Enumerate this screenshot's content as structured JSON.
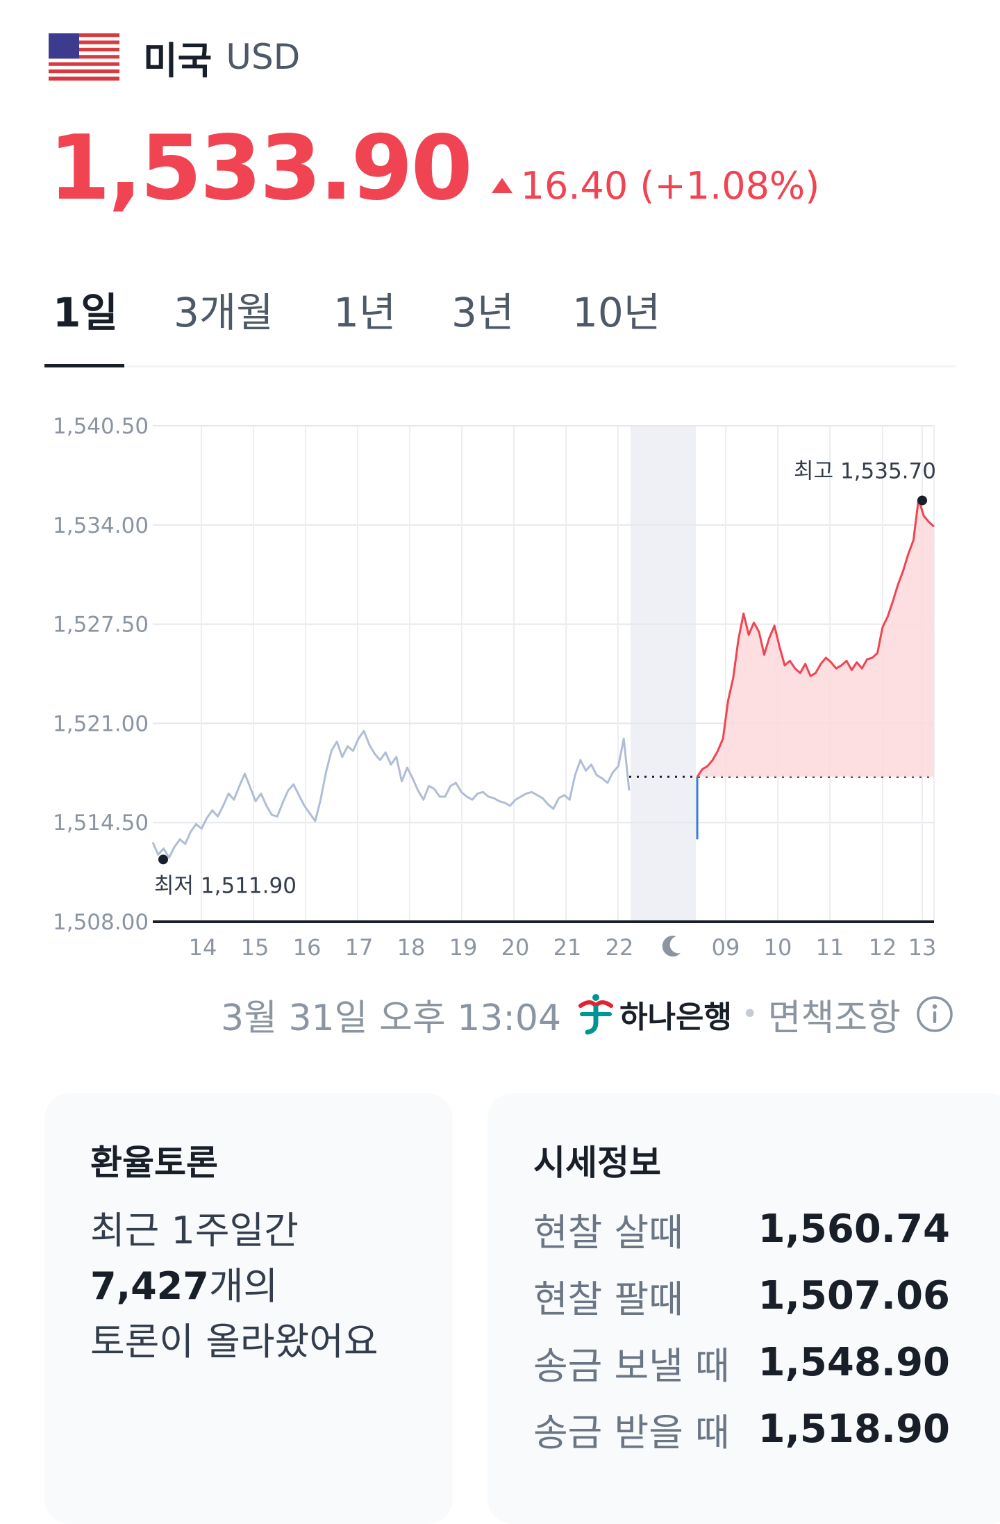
{
  "header": {
    "country": "미국",
    "currency_code": "USD",
    "flag_icon": "us-flag-icon",
    "price": "1,533.90",
    "change": "16.40 (+1.08%)",
    "change_direction": "up",
    "up_color": "#f04452"
  },
  "tabs": [
    {
      "label": "1일",
      "active": true
    },
    {
      "label": "3개월",
      "active": false
    },
    {
      "label": "1년",
      "active": false
    },
    {
      "label": "3년",
      "active": false
    },
    {
      "label": "10년",
      "active": false
    }
  ],
  "chart_data": {
    "type": "line",
    "ylim": [
      1508.0,
      1540.5
    ],
    "yticks": [
      "1,540.50",
      "1,534.00",
      "1,527.50",
      "1,521.00",
      "1,514.50",
      "1,508.00"
    ],
    "ytick_values": [
      1540.5,
      1534.0,
      1527.5,
      1521.0,
      1514.5,
      1508.0
    ],
    "xticks_previous": [
      "14",
      "15",
      "16",
      "17",
      "18",
      "19",
      "20",
      "21",
      "22"
    ],
    "xticks_today": [
      "09",
      "10",
      "11",
      "12",
      "13"
    ],
    "overnight_icon": "moon-icon",
    "previous_close": 1517.5,
    "grid": true,
    "previous_session": {
      "name": "previous session",
      "color": "#b0bdd6",
      "x_range": [
        "13:00",
        "22:10"
      ],
      "values": [
        1513.2,
        1512.4,
        1512.8,
        1512.2,
        1512.9,
        1513.4,
        1513.1,
        1513.9,
        1514.4,
        1514.1,
        1514.8,
        1515.3,
        1514.9,
        1515.6,
        1516.4,
        1516.0,
        1516.9,
        1517.7,
        1516.8,
        1515.9,
        1516.4,
        1515.6,
        1515.0,
        1514.9,
        1515.8,
        1516.6,
        1517.0,
        1516.3,
        1515.6,
        1515.1,
        1514.6,
        1516.0,
        1517.8,
        1519.2,
        1519.8,
        1518.8,
        1519.5,
        1519.2,
        1520.0,
        1520.5,
        1519.6,
        1519.0,
        1518.6,
        1519.1,
        1518.3,
        1518.8,
        1517.2,
        1518.1,
        1517.4,
        1516.6,
        1516.0,
        1516.9,
        1516.7,
        1516.2,
        1516.2,
        1516.9,
        1517.1,
        1516.5,
        1516.2,
        1516.0,
        1516.4,
        1516.5,
        1516.2,
        1516.1,
        1515.9,
        1515.8,
        1515.6,
        1516.0,
        1516.2,
        1516.4,
        1516.5,
        1516.3,
        1516.1,
        1515.7,
        1515.4,
        1516.1,
        1516.3,
        1516.0,
        1517.6,
        1518.6,
        1517.9,
        1518.3,
        1517.6,
        1517.4,
        1517.1,
        1517.8,
        1518.2,
        1520.0,
        1516.6
      ]
    },
    "today_session": {
      "name": "today",
      "color": "#f04452",
      "fill": "#fdd9dc",
      "x_range": [
        "08:30",
        "13:15"
      ],
      "values": [
        1517.5,
        1518.0,
        1518.2,
        1518.6,
        1519.2,
        1520.0,
        1522.5,
        1524.0,
        1526.5,
        1528.2,
        1526.8,
        1527.6,
        1527.0,
        1525.5,
        1526.6,
        1527.4,
        1526.0,
        1524.8,
        1525.1,
        1524.6,
        1524.3,
        1524.9,
        1524.1,
        1524.3,
        1524.9,
        1525.3,
        1525.0,
        1524.6,
        1524.8,
        1525.1,
        1524.5,
        1525.0,
        1524.6,
        1525.2,
        1525.3,
        1525.6,
        1527.3,
        1528.0,
        1529.0,
        1530.1,
        1531.0,
        1532.1,
        1533.0,
        1535.7,
        1534.6,
        1534.2,
        1533.9
      ]
    },
    "annotations": {
      "high": {
        "label": "최고 1,535.70",
        "value": 1535.7
      },
      "low": {
        "label": "최저 1,511.90",
        "value": 1511.9
      }
    }
  },
  "source": {
    "timestamp": "3월 31일 오후 13:04",
    "bank_name": "하나은행",
    "bank_icon": "hana-bank-logo-icon",
    "disclaimer": "면책조항",
    "info_icon": "info-icon"
  },
  "discussion": {
    "title": "환율토론",
    "line1": "최근 1주일간",
    "count": "7,427",
    "count_suffix": "개의",
    "line3": "토론이 올라왔어요"
  },
  "rates": {
    "title": "시세정보",
    "items": [
      {
        "label": "현찰 살때",
        "value": "1,560.74"
      },
      {
        "label": "현찰 팔때",
        "value": "1,507.06"
      },
      {
        "label": "송금 보낼 때",
        "value": "1,548.90"
      },
      {
        "label": "송금 받을 때",
        "value": "1,518.90"
      }
    ]
  }
}
